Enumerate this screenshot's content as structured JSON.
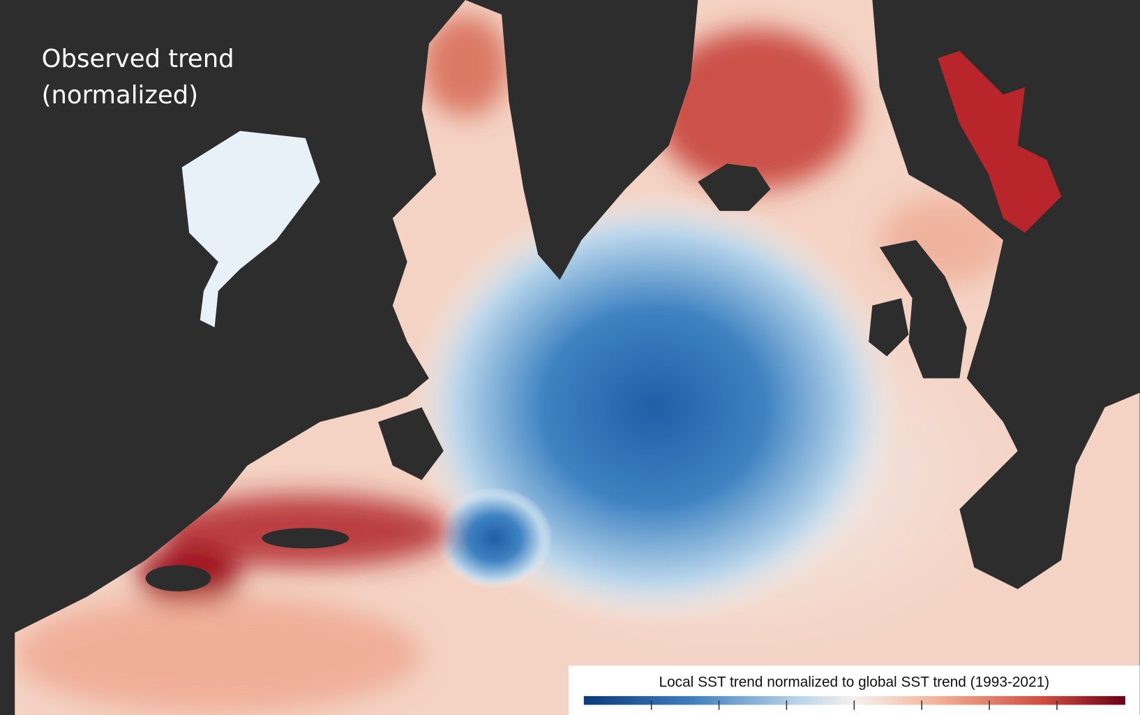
{
  "header": {
    "title_lines": [
      "Observed trend",
      "(normalized)"
    ]
  },
  "legend": {
    "title": "Local SST trend normalized to global SST trend (1993-2021)"
  }
}
